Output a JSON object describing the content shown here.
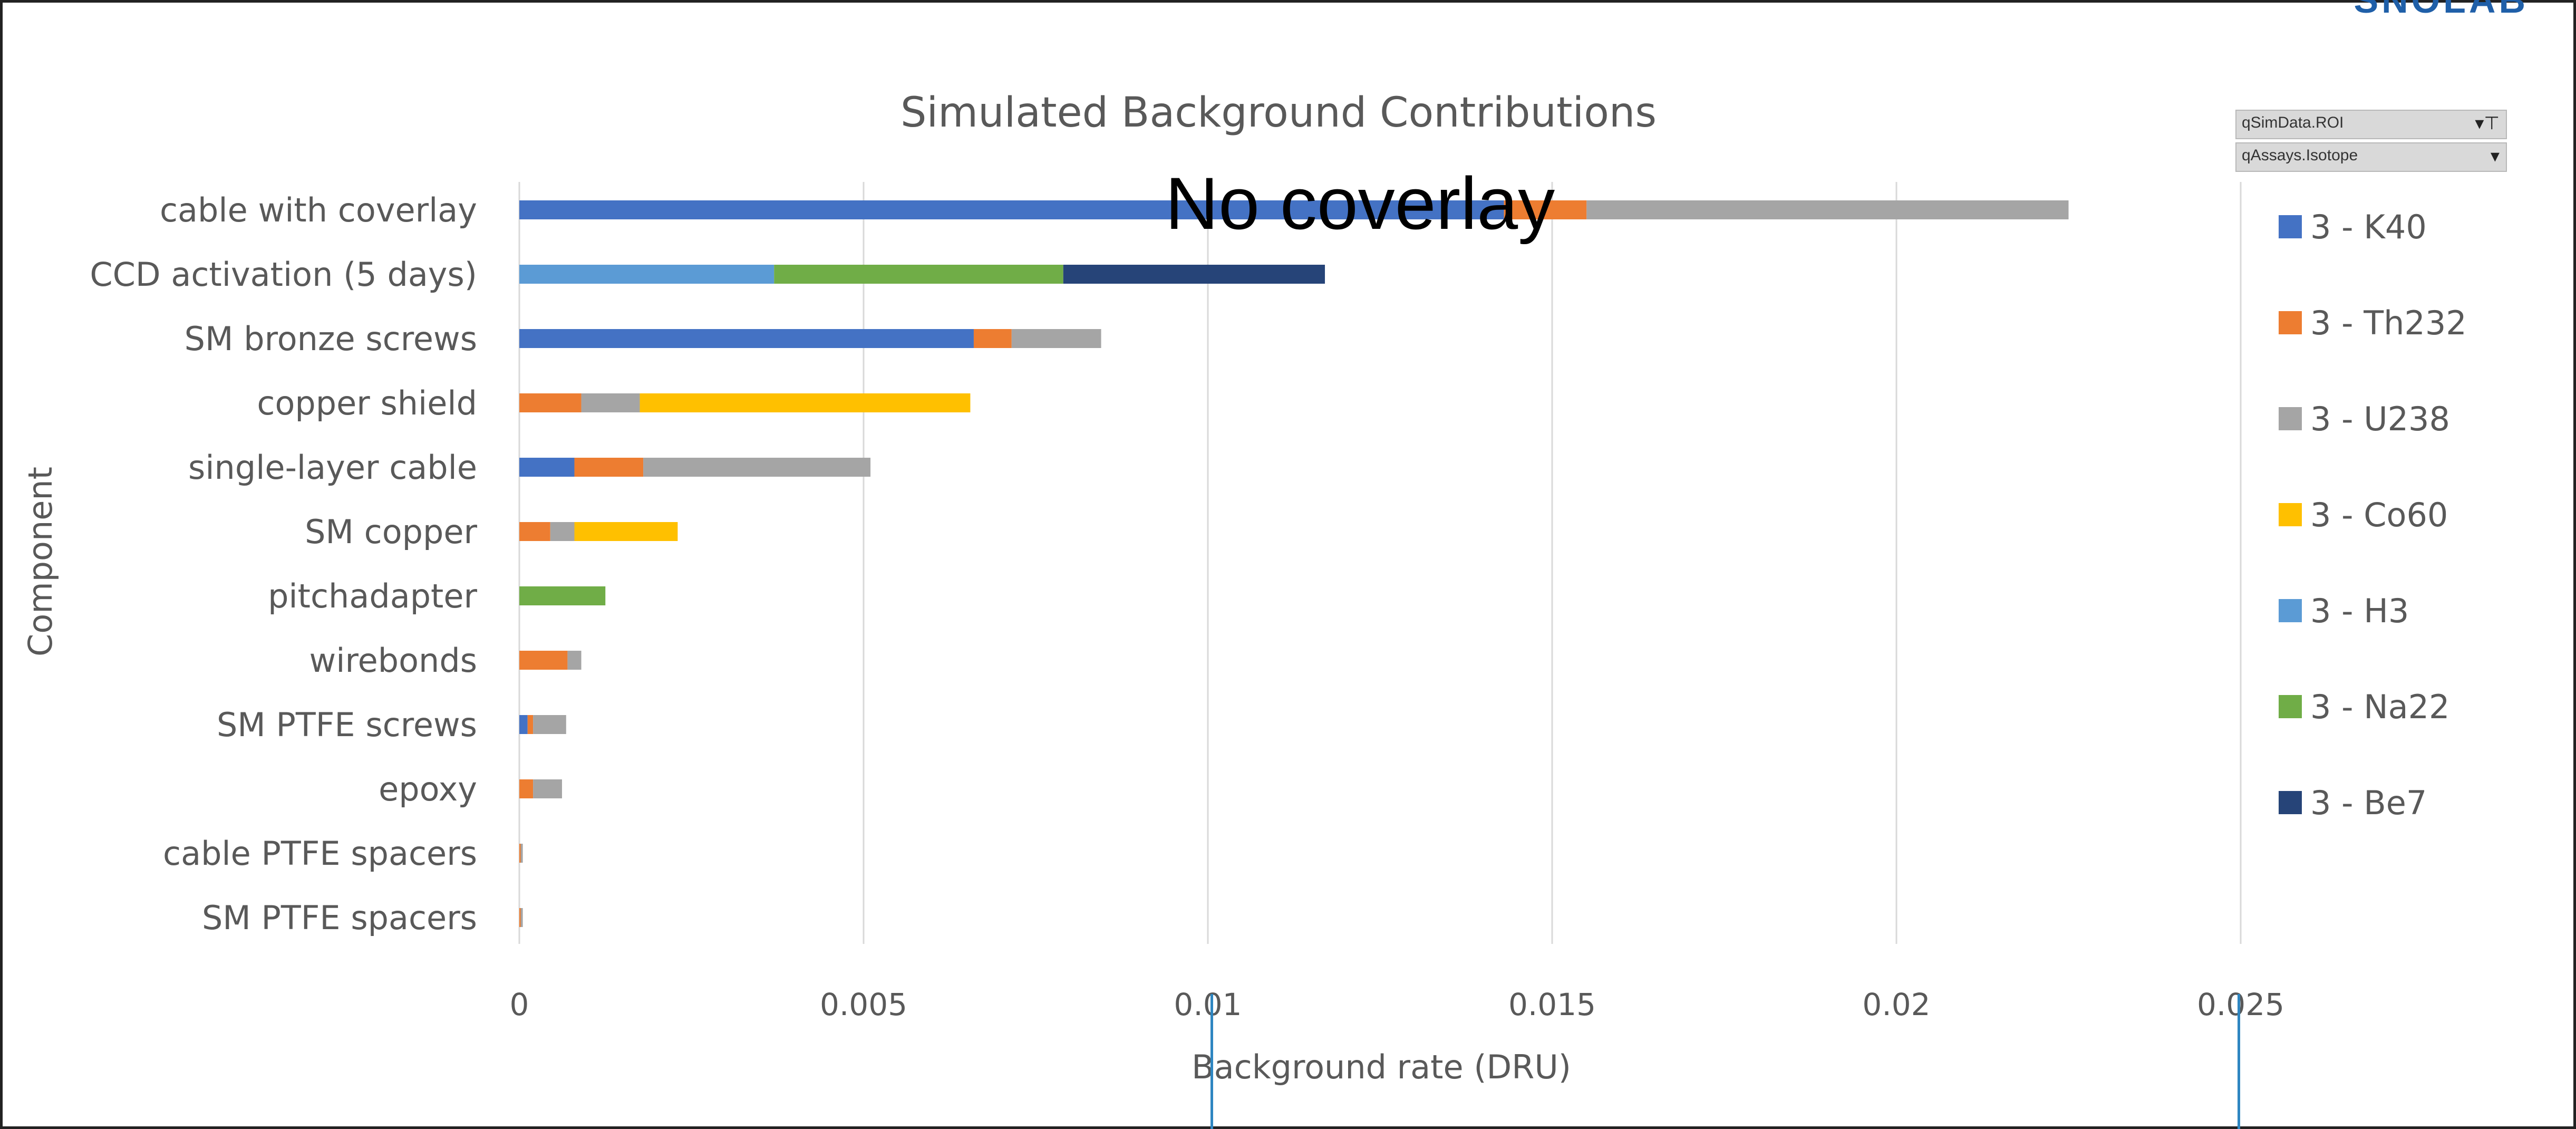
{
  "logo_text": "SNOLAB",
  "overlay_text": "No coverlay",
  "filters": [
    {
      "label": "qSimData.ROI",
      "control": "▾⊤"
    },
    {
      "label": "qAssays.Isotope",
      "control": "▾"
    }
  ],
  "chart_data": {
    "type": "bar",
    "orientation": "horizontal",
    "stacked": true,
    "title": "Simulated Background Contributions",
    "xlabel": "Background rate (DRU)",
    "ylabel": "Component",
    "xlim": [
      0,
      0.025
    ],
    "xticks": [
      "0",
      "0.005",
      "0.01",
      "0.015",
      "0.02",
      "0.025"
    ],
    "xtick_values": [
      0,
      0.005,
      0.01,
      0.015,
      0.02,
      0.025
    ],
    "grid": true,
    "legend_position": "right",
    "categories": [
      "cable with coverlay",
      "CCD activation (5 days)",
      "SM bronze screws",
      "copper shield",
      "single-layer cable",
      "SM  copper",
      "pitchadapter",
      "wirebonds",
      "SM PTFE screws",
      "epoxy",
      "cable PTFE spacers",
      "SM PTFE spacers"
    ],
    "series": [
      {
        "name": "3 - K40",
        "color": "#4472c4",
        "values": [
          0.0143,
          0,
          0.0066,
          0,
          0.0008,
          0,
          0,
          0,
          0.00012,
          0,
          0,
          0
        ]
      },
      {
        "name": "3 - Th232",
        "color": "#ed7d31",
        "values": [
          0.0012,
          0,
          0.00055,
          0.0009,
          0.001,
          0.00045,
          0,
          0.0007,
          8e-05,
          0.0002,
          2e-05,
          2e-05
        ]
      },
      {
        "name": "3 - U238",
        "color": "#a5a5a5",
        "values": [
          0.007,
          0,
          0.0013,
          0.00085,
          0.0033,
          0.00035,
          0,
          0.0002,
          0.00048,
          0.00042,
          3e-05,
          3e-05
        ]
      },
      {
        "name": "3 - Co60",
        "color": "#ffc000",
        "values": [
          0,
          0,
          0,
          0.0048,
          0,
          0.0015,
          0,
          0,
          0,
          0,
          0,
          0
        ]
      },
      {
        "name": "3 - H3",
        "color": "#5b9bd5",
        "values": [
          0,
          0.0037,
          0,
          0,
          0,
          0,
          0,
          0,
          0,
          0,
          0,
          0
        ]
      },
      {
        "name": "3 - Na22",
        "color": "#70ad47",
        "values": [
          0,
          0.0042,
          0,
          0,
          0,
          0,
          0.00125,
          0,
          0,
          0,
          0,
          0
        ]
      },
      {
        "name": "3 - Be7",
        "color": "#264478",
        "values": [
          0,
          0.0038,
          0,
          0,
          0,
          0,
          0,
          0,
          0,
          0,
          0,
          0
        ]
      }
    ]
  }
}
